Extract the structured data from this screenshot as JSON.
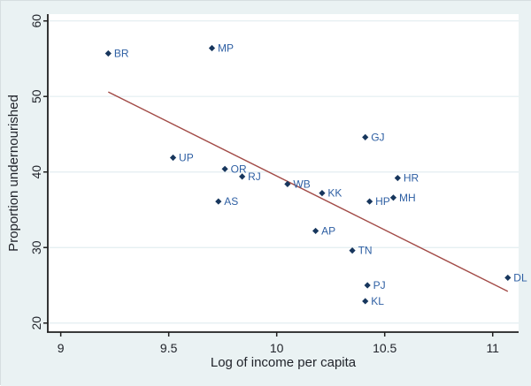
{
  "chart_data": {
    "type": "scatter",
    "title": "",
    "xlabel": "Log of income per capita",
    "ylabel": "Proportion undernourished",
    "xlim": [
      8.94,
      11.12
    ],
    "ylim": [
      18.8,
      60.9
    ],
    "x_ticks": [
      "9",
      "9.5",
      "10",
      "10.5",
      "11"
    ],
    "x_tick_values": [
      9,
      9.5,
      10,
      10.5,
      11
    ],
    "y_ticks": [
      "20",
      "30",
      "40",
      "50",
      "60"
    ],
    "y_tick_values": [
      20,
      30,
      40,
      50,
      60
    ],
    "grid": "horizontal gridlines at y ticks",
    "legend": "none",
    "points": [
      {
        "label": "BR",
        "x": 9.22,
        "y": 55.7
      },
      {
        "label": "MP",
        "x": 9.7,
        "y": 56.4
      },
      {
        "label": "UP",
        "x": 9.52,
        "y": 41.9
      },
      {
        "label": "OR",
        "x": 9.76,
        "y": 40.4
      },
      {
        "label": "RJ",
        "x": 9.84,
        "y": 39.4
      },
      {
        "label": "AS",
        "x": 9.73,
        "y": 36.1
      },
      {
        "label": "WB",
        "x": 10.05,
        "y": 38.4
      },
      {
        "label": "KK",
        "x": 10.21,
        "y": 37.2
      },
      {
        "label": "GJ",
        "x": 10.41,
        "y": 44.6
      },
      {
        "label": "HR",
        "x": 10.56,
        "y": 39.2
      },
      {
        "label": "HP",
        "x": 10.43,
        "y": 36.1
      },
      {
        "label": "MH",
        "x": 10.54,
        "y": 36.6
      },
      {
        "label": "AP",
        "x": 10.18,
        "y": 32.2
      },
      {
        "label": "TN",
        "x": 10.35,
        "y": 29.6
      },
      {
        "label": "PJ",
        "x": 10.42,
        "y": 25.0
      },
      {
        "label": "KL",
        "x": 10.41,
        "y": 22.9
      },
      {
        "label": "DL",
        "x": 11.07,
        "y": 26.0
      }
    ],
    "fit_line": {
      "x1": 9.22,
      "y1": 50.6,
      "x2": 11.07,
      "y2": 24.2
    },
    "colors": {
      "outer_background": "#eaf2f3",
      "plot_background": "#ffffff",
      "gridline": "#e3edf0",
      "axis": "#1f1f1f",
      "tick_text": "#21242b",
      "marker": "#17365d",
      "marker_label": "#2e5fa3",
      "fit_line": "#a34c48"
    }
  }
}
